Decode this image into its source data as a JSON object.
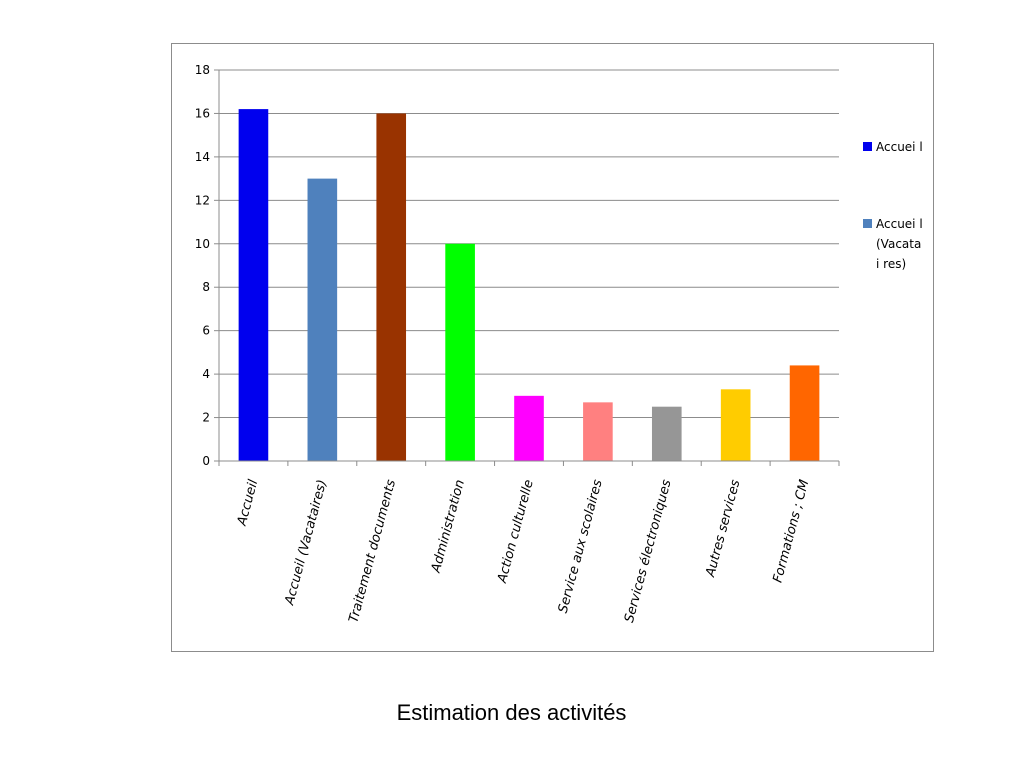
{
  "chart_data": {
    "type": "bar",
    "categories": [
      "Accueil",
      "Accueil (Vacataires)",
      "Traitement documents",
      "Administration",
      "Action culturelle",
      "Service aux scolaires",
      "Services électroniques",
      "Autres services",
      "Formations ; CM"
    ],
    "values": [
      16.2,
      13.0,
      16.0,
      10.0,
      3.0,
      2.7,
      2.5,
      3.3,
      4.4
    ],
    "colors": [
      "#0000ee",
      "#4f81bd",
      "#993300",
      "#00ff00",
      "#ff00ff",
      "#ff8080",
      "#969696",
      "#ffcc00",
      "#ff6600"
    ],
    "ylim": [
      0,
      18
    ],
    "yticks": [
      0,
      2,
      4,
      6,
      8,
      10,
      12,
      14,
      16,
      18
    ],
    "grid": true,
    "legend": {
      "placement": "right",
      "entries": [
        {
          "lines": [
            "Accuei l"
          ],
          "color": "#0000ee"
        },
        {
          "lines": [
            "Accuei l",
            "(Vacata",
            "i res)"
          ],
          "color": "#4f81bd"
        }
      ]
    }
  },
  "caption": "Estimation des activités"
}
